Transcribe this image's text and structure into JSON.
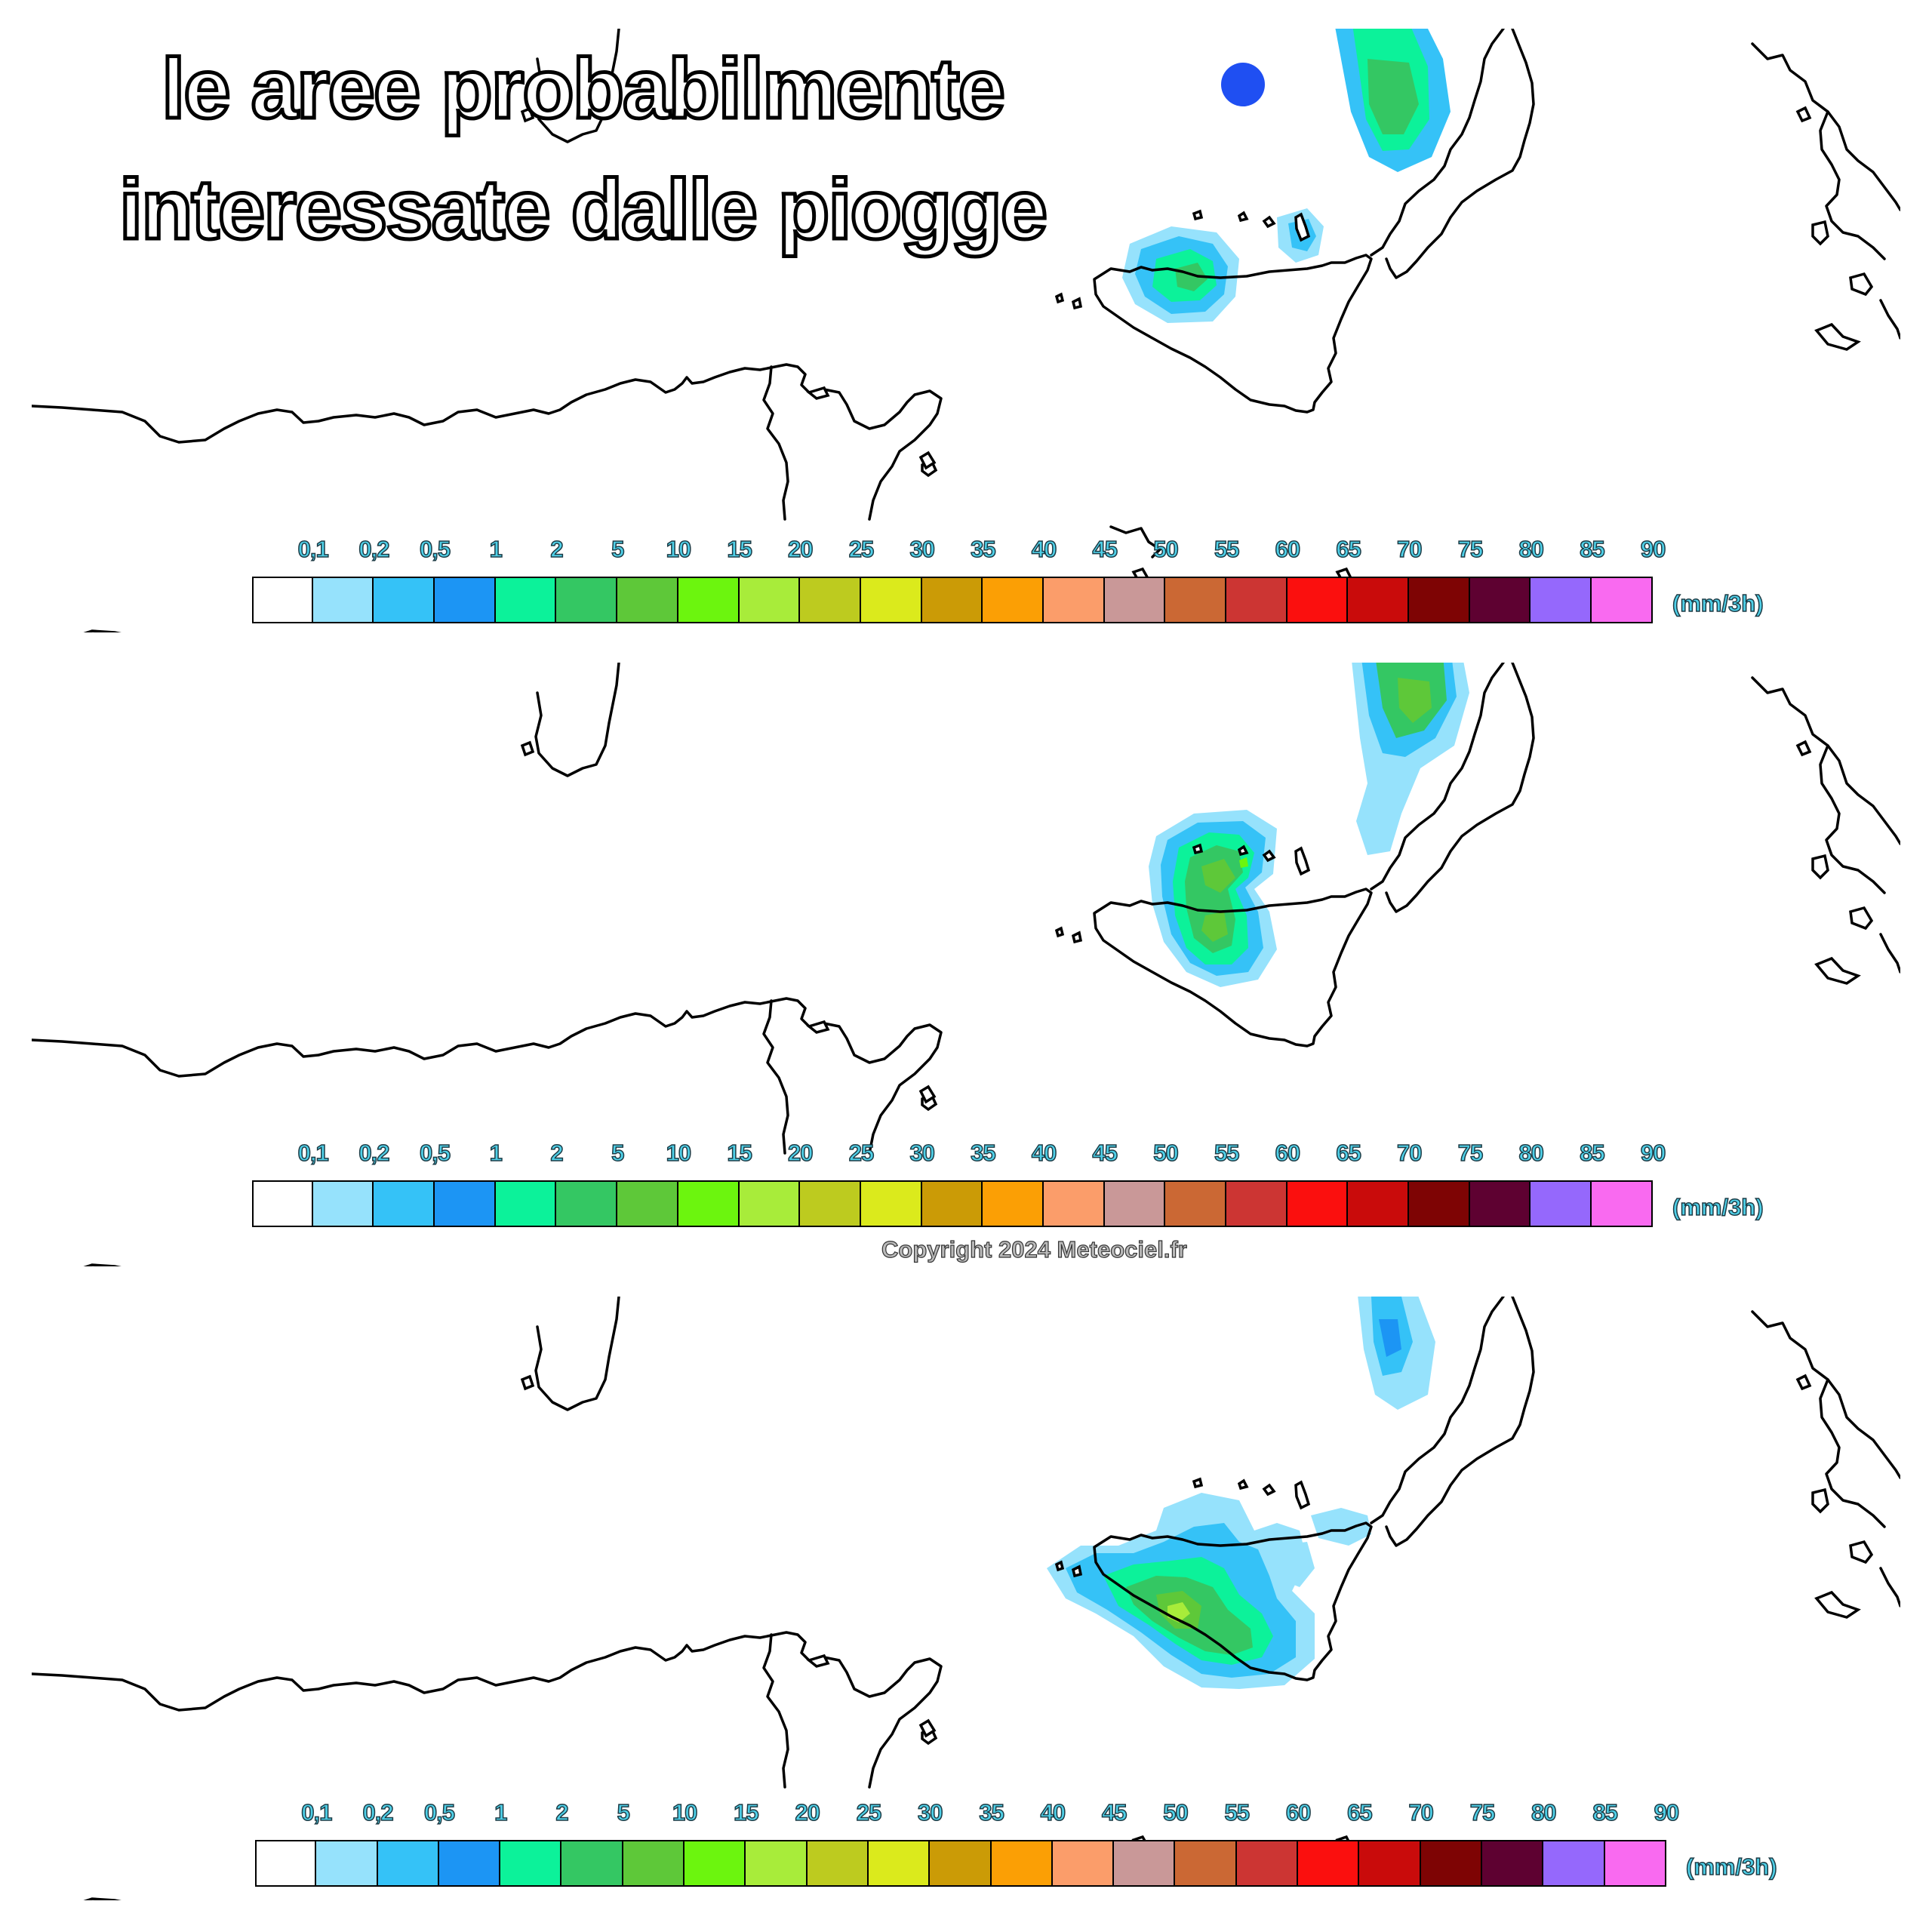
{
  "headline": {
    "line1": "le aree probabilmente",
    "line2": "interessate dalle piogge"
  },
  "marker_color": "#1f4ff2",
  "precipitation_scale": {
    "unit": "(mm/3h)",
    "ticks": [
      "0,1",
      "0,2",
      "0,5",
      "1",
      "2",
      "5",
      "10",
      "15",
      "20",
      "25",
      "30",
      "35",
      "40",
      "45",
      "50",
      "55",
      "60",
      "65",
      "70",
      "75",
      "80",
      "85",
      "90"
    ],
    "colors": [
      "#ffffff",
      "#96e2fc",
      "#35c2f7",
      "#1c95f4",
      "#0cf29a",
      "#34c763",
      "#5ec839",
      "#6cf50e",
      "#a8ec3a",
      "#bdcb1f",
      "#dbea1c",
      "#cb9b06",
      "#fb9f05",
      "#fb9d6a",
      "#c99898",
      "#cb6834",
      "#cc3533",
      "#fb0f0e",
      "#c90b0b",
      "#7e0404",
      "#5e0131",
      "#9568fc",
      "#f96af0"
    ]
  },
  "copyright": "Copyright 2024 Meteociel.fr",
  "panels": [
    {
      "name": "forecast-step-1",
      "precip_areas": [
        "north-east Sicily",
        "southern Calabria",
        "Messina strait"
      ]
    },
    {
      "name": "forecast-step-2",
      "precip_areas": [
        "eastern Sicily",
        "Calabria"
      ]
    },
    {
      "name": "forecast-step-3",
      "precip_areas": [
        "south-east Sicily",
        "northern Calabria"
      ]
    }
  ]
}
